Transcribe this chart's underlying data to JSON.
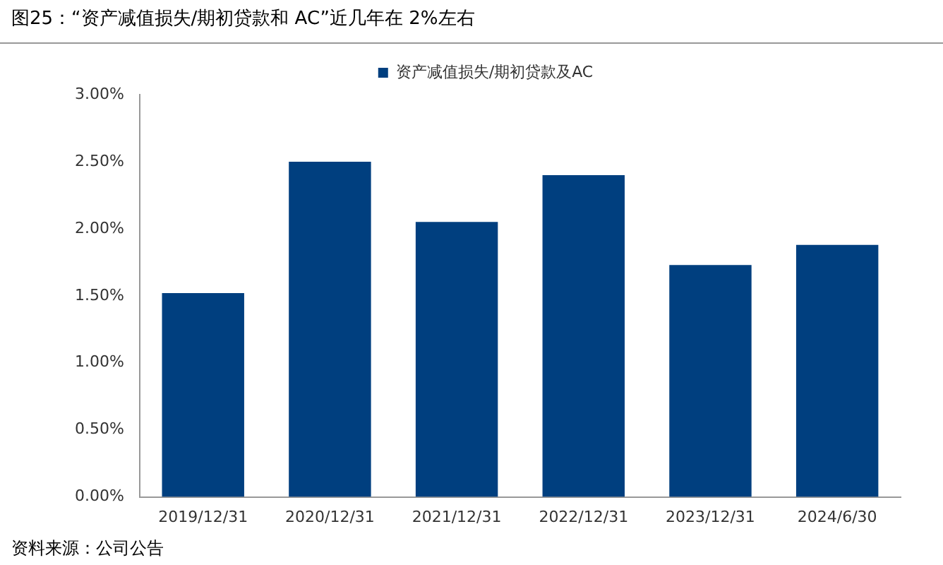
{
  "chart_data": {
    "type": "bar",
    "title": "图25：“资产减值损失/期初贷款和 AC”近几年在 2%左右",
    "categories": [
      "2019/12/31",
      "2020/12/31",
      "2021/12/31",
      "2022/12/31",
      "2023/12/31",
      "2024/6/30"
    ],
    "series": [
      {
        "name": "资产减值损失/期初贷款及AC",
        "color": "#003f7f",
        "values": [
          1.52,
          2.5,
          2.05,
          2.4,
          1.73,
          1.88
        ]
      }
    ],
    "ylim": [
      0,
      3
    ],
    "yticks": [
      {
        "value": 0,
        "label": "0.00%"
      },
      {
        "value": 0.5,
        "label": "0.50%"
      },
      {
        "value": 1,
        "label": "1.00%"
      },
      {
        "value": 1.5,
        "label": "1.50%"
      },
      {
        "value": 2,
        "label": "2.00%"
      },
      {
        "value": 2.5,
        "label": "2.50%"
      },
      {
        "value": 3,
        "label": "3.00%"
      }
    ],
    "grid": false,
    "legend": "top",
    "annotations": [
      "资料来源：公司公告"
    ]
  }
}
